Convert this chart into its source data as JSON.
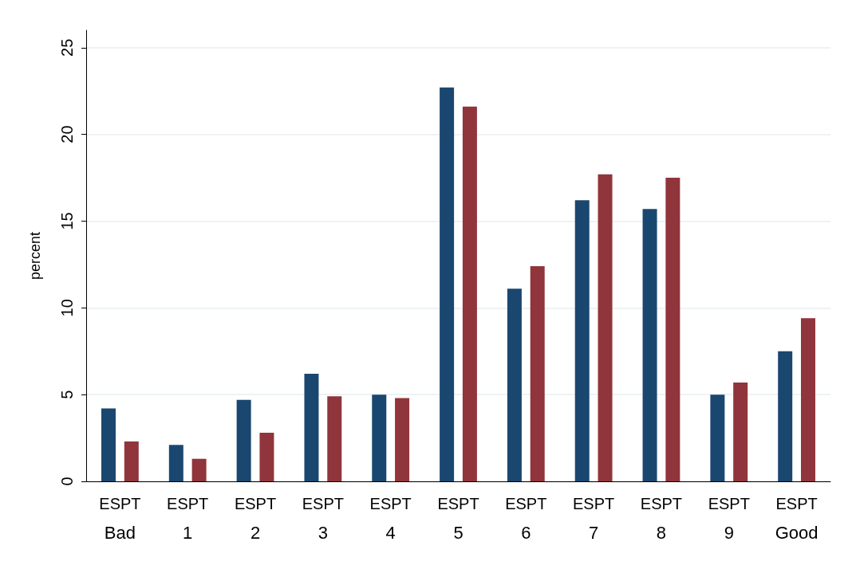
{
  "chart_data": {
    "type": "bar",
    "ylabel": "percent",
    "categories": [
      "Bad",
      "1",
      "2",
      "3",
      "4",
      "5",
      "6",
      "7",
      "8",
      "9",
      "Good"
    ],
    "series": [
      {
        "name": "ES",
        "color": "#1a476f",
        "values": [
          4.2,
          2.1,
          4.7,
          6.2,
          5.0,
          22.7,
          11.1,
          16.2,
          15.7,
          5.0,
          7.5
        ]
      },
      {
        "name": "PT",
        "color": "#90353b",
        "values": [
          2.3,
          1.3,
          2.8,
          4.9,
          4.8,
          21.6,
          12.4,
          17.7,
          17.5,
          5.7,
          9.4
        ]
      }
    ],
    "ylim": [
      0,
      26
    ],
    "yticks": [
      0,
      5,
      10,
      15,
      20,
      25
    ],
    "grid": "y",
    "legend": false
  }
}
